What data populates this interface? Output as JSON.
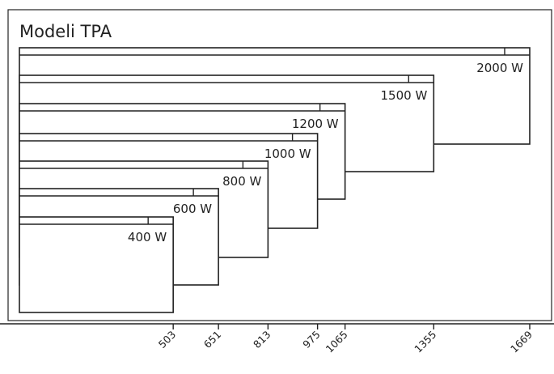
{
  "title": "Modeli TPA",
  "colors": {
    "stroke": "#222222",
    "background": "#ffffff"
  },
  "models": [
    {
      "label": "2000 W",
      "width": 1669
    },
    {
      "label": "1500 W",
      "width": 1355
    },
    {
      "label": "1200 W",
      "width": 1065
    },
    {
      "label": "1000 W",
      "width": 975
    },
    {
      "label": "800 W",
      "width": 813
    },
    {
      "label": "600 W",
      "width": 651
    },
    {
      "label": "400 W",
      "width": 503
    }
  ],
  "axis": {
    "ticks": [
      "503",
      "651",
      "813",
      "975",
      "1065",
      "1355",
      "1669"
    ]
  }
}
